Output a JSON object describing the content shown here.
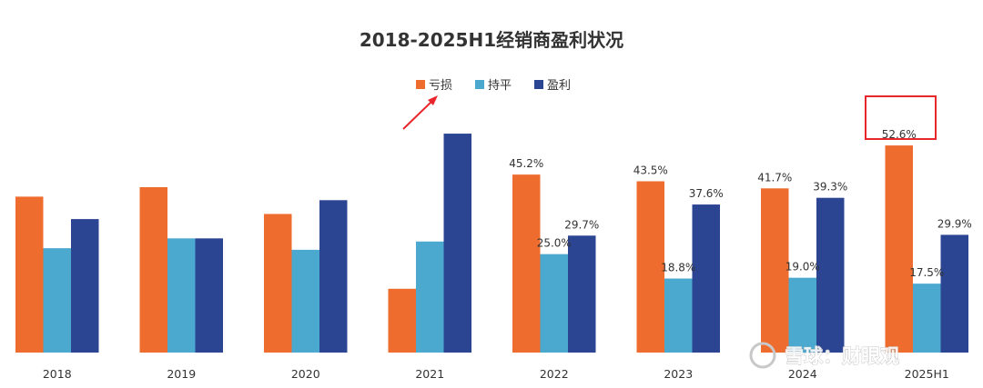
{
  "chart_data": {
    "type": "bar",
    "title": "2018-2025H1经销商盈利状况",
    "categories": [
      "2018",
      "2019",
      "2020",
      "2021",
      "2022",
      "2023",
      "2024",
      "2025H1"
    ],
    "series": [
      {
        "name": "亏损",
        "color": "#ED6C2E",
        "values": [
          39.6,
          42.0,
          35.2,
          16.2,
          45.2,
          43.5,
          41.7,
          52.6
        ],
        "labels": [
          "",
          "",
          "",
          "",
          "45.2%",
          "43.5%",
          "41.7%",
          "52.6%"
        ]
      },
      {
        "name": "持平",
        "color": "#4BA8CF",
        "values": [
          26.5,
          29.0,
          26.1,
          28.2,
          25.0,
          18.8,
          19.0,
          17.5
        ],
        "labels": [
          "",
          "",
          "",
          "",
          "25.0%",
          "18.8%",
          "19.0%",
          "17.5%"
        ]
      },
      {
        "name": "盈利",
        "color": "#2B4593",
        "values": [
          33.9,
          29.0,
          38.7,
          55.6,
          29.7,
          37.6,
          39.3,
          29.9
        ],
        "labels": [
          "",
          "",
          "",
          "",
          "29.7%",
          "37.6%",
          "39.3%",
          "29.9%"
        ]
      }
    ],
    "ylim": [
      0,
      60
    ],
    "grid": false,
    "legend_position": "top-center",
    "annotations": {
      "highlight_box": "52.6%",
      "arrow_target": "亏损"
    }
  },
  "watermark": "雪球：财眼观"
}
